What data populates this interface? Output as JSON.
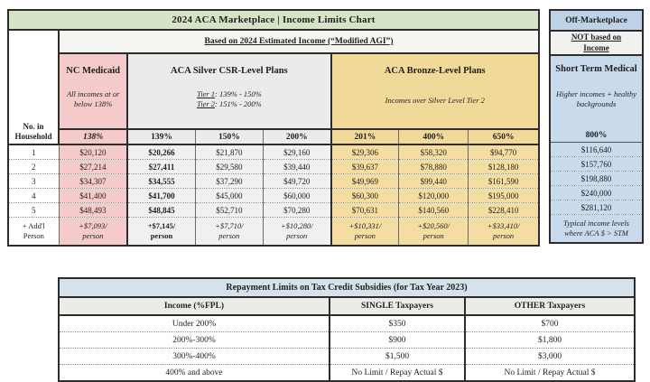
{
  "income_chart": {
    "title": "2024 ACA Marketplace | Income Limits Chart",
    "subtitle": "Based on 2024 Estimated Income (“Modified AGI”)",
    "household_line1": "No. in",
    "household_line2": "Household",
    "groups": {
      "medicaid": {
        "name": "NC Medicaid",
        "note_line1": "All incomes at or",
        "note_line2": "below 138%"
      },
      "silver": {
        "name": "ACA Silver CSR-Level Plans",
        "tier1_label": "Tier 1",
        "tier1_rest": ": 139% - 150%",
        "tier2_label": "Tier 2",
        "tier2_rest": ": 151% - 200%"
      },
      "bronze": {
        "name": "ACA Bronze-Level Plans",
        "note": "Incomes over Silver Level Tier 2"
      }
    },
    "percent_headers": [
      "138%",
      "139%",
      "150%",
      "200%",
      "201%",
      "400%",
      "650%"
    ],
    "rows": [
      {
        "label": "1",
        "values": [
          "$20,120",
          "$20,266",
          "$21,870",
          "$29,160",
          "$29,306",
          "$58,320",
          "$94,770"
        ]
      },
      {
        "label": "2",
        "values": [
          "$27,214",
          "$27,411",
          "$29,580",
          "$39,440",
          "$39,637",
          "$78,880",
          "$128,180"
        ]
      },
      {
        "label": "3",
        "values": [
          "$34,307",
          "$34,555",
          "$37,290",
          "$49,720",
          "$49,969",
          "$99,440",
          "$161,590"
        ]
      },
      {
        "label": "4",
        "values": [
          "$41,400",
          "$41,700",
          "$45,000",
          "$60,000",
          "$60,300",
          "$120,000",
          "$195,000"
        ]
      },
      {
        "label": "5",
        "values": [
          "$48,493",
          "$48,845",
          "$52,710",
          "$70,280",
          "$70,631",
          "$140,560",
          "$228,410"
        ]
      }
    ],
    "addl_row": {
      "label_line1": "+ Add'l",
      "label_line2": "Person",
      "values": [
        "+$7,093/",
        "+$7,145/",
        "+$7,710/",
        "+$10,280/",
        "+$10,331/",
        "+$20,560/",
        "+$33,410/"
      ],
      "per_label": "person"
    }
  },
  "off_marketplace": {
    "title": "Off-Marketplace",
    "not_based_line1": "NOT based on",
    "not_based_line2": "Income",
    "plan_name": "Short Term Medical",
    "note_line1": "Higher incomes + healthy",
    "note_line2": "backgrounds",
    "percent_header": "800%",
    "values": [
      "$116,640",
      "$157,760",
      "$198,880",
      "$240,000",
      "$281,120"
    ],
    "footer_line1": "Typical income levels",
    "footer_line2": "where ACA $ > STM"
  },
  "repayment_table": {
    "title": "Repayment Limits on Tax Credit Subsidies (for Tax Year 2023)",
    "columns": [
      "Income (%FPL)",
      "SINGLE Taxpayers",
      "OTHER Taxpayers"
    ],
    "rows": [
      [
        "Under 200%",
        "$350",
        "$700"
      ],
      [
        "200%-300%",
        "$900",
        "$1,800"
      ],
      [
        "300%-400%",
        "$1,500",
        "$3,000"
      ],
      [
        "400% and above",
        "No Limit / Repay Actual $",
        "No Limit / Repay Actual $"
      ]
    ]
  },
  "colors": {
    "title_green": "#d7e3c6",
    "medicaid_pink": "#f4caca",
    "silver_gray": "#ebebe9",
    "bronze_gold": "#f1da99",
    "offmarket_blue": "#c8daec",
    "repay_header_blue": "#d6e2e9",
    "border_dark": "#2c2c2c"
  }
}
